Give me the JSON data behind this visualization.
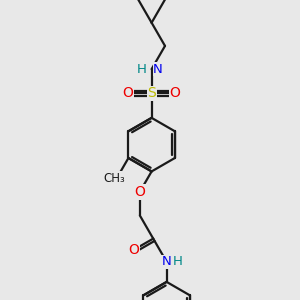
{
  "bg_color": "#e8e8e8",
  "bond_color": "#1a1a1a",
  "lw": 1.6,
  "colors": {
    "N": "#0000ee",
    "O": "#ee0000",
    "S": "#bbbb00",
    "H": "#008888",
    "C": "#1a1a1a"
  },
  "xlim": [
    -1.5,
    1.8
  ],
  "ylim": [
    -2.8,
    2.8
  ],
  "sc": 0.5
}
